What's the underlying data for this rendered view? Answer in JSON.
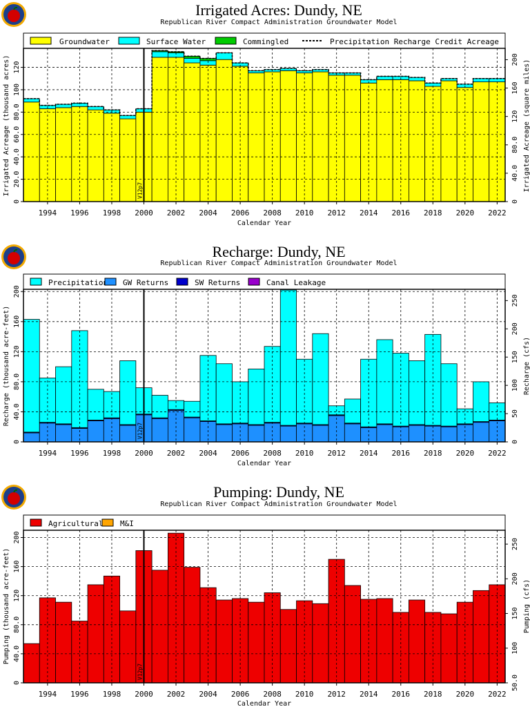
{
  "page": {
    "logo_icon": "apple-seal-icon",
    "colors": {
      "groundwater": "#ffff00",
      "surface_water": "#00ffff",
      "commingled": "#00cc00",
      "precipitation": "#00ffff",
      "gw_returns": "#1e90ff",
      "sw_returns": "#0000cc",
      "canal_leakage": "#9900cc",
      "agricultural": "#ee0000",
      "mi": "#ffa500"
    }
  },
  "chart_data": [
    {
      "id": "irrigated",
      "type": "bar",
      "title": "Irrigated Acres: Dundy, NE",
      "subtitle": "Republican River Compact Administration Groundwater Model",
      "xlabel": "Calendar Year",
      "ylabel": "Irrigated Acreage (thousand acres)",
      "y2label": "Irrigated Acreage (square miles)",
      "ylim": [
        0,
        137
      ],
      "yticks": [
        "0",
        "20.0",
        "40.0",
        "60.0",
        "80.0",
        "100",
        "120"
      ],
      "y2ticks": [
        "0",
        "40.0",
        "80.0",
        "120",
        "160",
        "200"
      ],
      "xticks": [
        "1994",
        "1996",
        "1998",
        "2000",
        "2002",
        "2004",
        "2006",
        "2008",
        "2010",
        "2012",
        "2014",
        "2016",
        "2018",
        "2020",
        "2022"
      ],
      "marker": {
        "label": "V12p7",
        "x": 2000.5
      },
      "legend": [
        "Groundwater",
        "Surface Water",
        "Commingled",
        "Precipitation Recharge Credit Acreage"
      ],
      "categories": [
        1993,
        1994,
        1995,
        1996,
        1997,
        1998,
        1999,
        2000,
        2001,
        2002,
        2003,
        2004,
        2005,
        2006,
        2007,
        2008,
        2009,
        2010,
        2011,
        2012,
        2013,
        2014,
        2015,
        2016,
        2017,
        2018,
        2019,
        2020,
        2021,
        2022
      ],
      "series": [
        {
          "name": "Groundwater",
          "values": [
            89,
            83,
            84,
            85,
            82,
            79,
            74,
            80,
            129,
            129,
            124,
            122,
            127,
            121,
            115,
            116,
            117,
            115,
            116,
            113,
            113,
            106,
            109,
            109,
            108,
            103,
            108,
            102,
            107,
            107
          ]
        },
        {
          "name": "Surface Water",
          "values": [
            3,
            3,
            3,
            3,
            3,
            3,
            3,
            3,
            5,
            4,
            4,
            4,
            6,
            3,
            2,
            2,
            2,
            2,
            2,
            2,
            2,
            3,
            3,
            3,
            3,
            3,
            2,
            3,
            3,
            3
          ]
        },
        {
          "name": "Commingled",
          "values": [
            0,
            0,
            0,
            0,
            0,
            0,
            0,
            0,
            1,
            1,
            2,
            2,
            0,
            0,
            0,
            0,
            0,
            0,
            0,
            0,
            0,
            0,
            0,
            0,
            0,
            0,
            0,
            0,
            0,
            0
          ]
        },
        {
          "name": "Precipitation Recharge Credit Acreage",
          "values": [
            92,
            86,
            87,
            88,
            85,
            82,
            77,
            83,
            135,
            134,
            130,
            128,
            133,
            124,
            117,
            118,
            119,
            117,
            118,
            115,
            115,
            109,
            112,
            112,
            111,
            106,
            110,
            105,
            110,
            110
          ]
        }
      ]
    },
    {
      "id": "recharge",
      "type": "bar",
      "title": "Recharge: Dundy, NE",
      "subtitle": "Republican River Compact Administration Groundwater Model",
      "xlabel": "Calendar Year",
      "ylabel": "Recharge (thousand acre-feet)",
      "y2label": "Recharge (cfs)",
      "ylim": [
        0,
        203
      ],
      "yticks": [
        "0",
        "40.0",
        "80.0",
        "120",
        "160",
        "200"
      ],
      "y2ticks": [
        "0",
        "50",
        "100",
        "150",
        "200",
        "250"
      ],
      "xticks": [
        "1994",
        "1996",
        "1998",
        "2000",
        "2002",
        "2004",
        "2006",
        "2008",
        "2010",
        "2012",
        "2014",
        "2016",
        "2018",
        "2020",
        "2022"
      ],
      "marker": {
        "label": "V12p7",
        "x": 2000.5
      },
      "legend": [
        "Precipitation",
        "GW Returns",
        "SW Returns",
        "Canal Leakage"
      ],
      "categories": [
        1993,
        1994,
        1995,
        1996,
        1997,
        1998,
        1999,
        2000,
        2001,
        2002,
        2003,
        2004,
        2005,
        2006,
        2007,
        2008,
        2009,
        2010,
        2011,
        2012,
        2013,
        2014,
        2015,
        2016,
        2017,
        2018,
        2019,
        2020,
        2021,
        2022
      ],
      "series": [
        {
          "name": "GW Returns",
          "values": [
            12,
            25,
            23,
            18,
            28,
            31,
            22,
            36,
            31,
            42,
            32,
            27,
            23,
            24,
            22,
            25,
            21,
            24,
            22,
            35,
            24,
            19,
            23,
            20,
            22,
            21,
            20,
            23,
            26,
            28
          ]
        },
        {
          "name": "SW Returns",
          "values": [
            1,
            1,
            1,
            1,
            1,
            1,
            1,
            1,
            1,
            1,
            1,
            1,
            1,
            1,
            1,
            1,
            1,
            1,
            1,
            1,
            1,
            1,
            1,
            1,
            1,
            1,
            1,
            1,
            1,
            1
          ]
        },
        {
          "name": "Canal Leakage",
          "values": [
            0,
            0,
            0,
            0,
            0,
            0,
            0,
            0,
            0,
            0,
            0,
            0,
            0,
            0,
            0,
            0,
            0,
            0,
            0,
            0,
            0,
            0,
            0,
            0,
            0,
            0,
            0,
            0,
            0,
            0
          ]
        },
        {
          "name": "Precipitation",
          "values": [
            150,
            59,
            76,
            129,
            41,
            35,
            85,
            35,
            30,
            12,
            21,
            87,
            80,
            55,
            74,
            101,
            180,
            85,
            121,
            12,
            32,
            90,
            112,
            97,
            85,
            121,
            83,
            20,
            53,
            23
          ]
        }
      ]
    },
    {
      "id": "pumping",
      "type": "bar",
      "title": "Pumping: Dundy, NE",
      "subtitle": "Republican River Compact Administration Groundwater Model",
      "xlabel": "Calendar Year",
      "ylabel": "Pumping (thousand acre-feet)",
      "y2label": "Pumping (cfs)",
      "ylim": [
        0,
        210
      ],
      "yticks": [
        "0",
        "40.0",
        "80.0",
        "120",
        "160",
        "200"
      ],
      "y2ticks": [
        "50.0",
        "100",
        "150",
        "200",
        "250"
      ],
      "xticks": [
        "1994",
        "1996",
        "1998",
        "2000",
        "2002",
        "2004",
        "2006",
        "2008",
        "2010",
        "2012",
        "2014",
        "2016",
        "2018",
        "2020",
        "2022"
      ],
      "marker": {
        "label": "V12p7",
        "x": 2000.5
      },
      "legend": [
        "Agricultural",
        "M&I"
      ],
      "categories": [
        1993,
        1994,
        1995,
        1996,
        1997,
        1998,
        1999,
        2000,
        2001,
        2002,
        2003,
        2004,
        2005,
        2006,
        2007,
        2008,
        2009,
        2010,
        2011,
        2012,
        2013,
        2014,
        2015,
        2016,
        2017,
        2018,
        2019,
        2020,
        2021,
        2022
      ],
      "series": [
        {
          "name": "Agricultural",
          "values": [
            54,
            117,
            111,
            85,
            135,
            147,
            99,
            182,
            155,
            206,
            159,
            131,
            114,
            116,
            111,
            124,
            101,
            113,
            109,
            170,
            134,
            115,
            116,
            97,
            114,
            97,
            95,
            111,
            127,
            135
          ]
        },
        {
          "name": "M&I",
          "values": [
            0,
            0,
            0,
            0,
            0,
            0,
            0,
            0,
            0,
            0,
            0,
            0,
            0,
            0,
            0,
            0,
            0,
            0,
            0,
            0,
            0,
            0,
            0,
            0,
            0,
            0,
            0,
            0,
            0,
            0
          ]
        }
      ]
    }
  ]
}
